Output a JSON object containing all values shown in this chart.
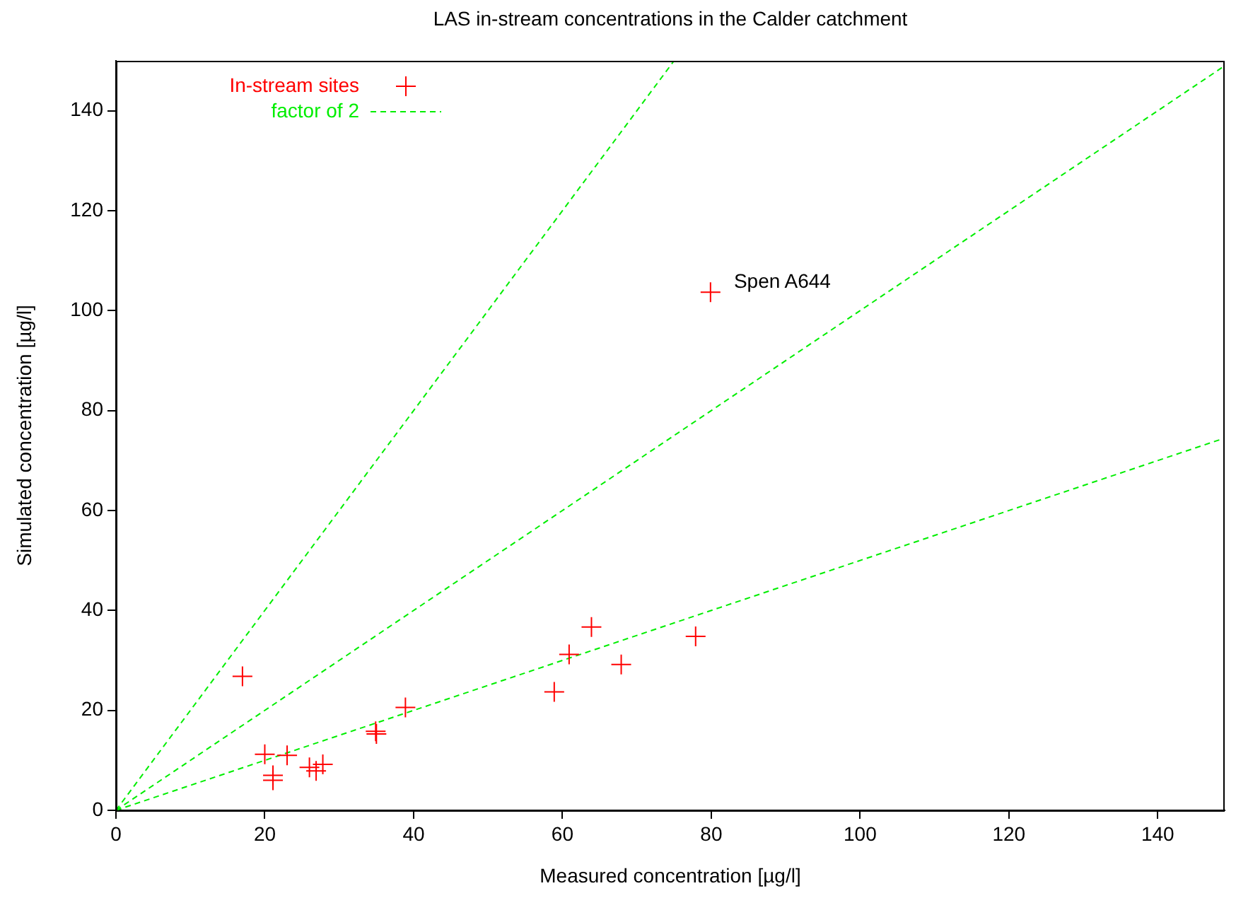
{
  "chart_data": {
    "type": "scatter",
    "title": "LAS in-stream concentrations in the Calder catchment",
    "xlabel": "Measured concentration [µg/l]",
    "ylabel": "Simulated concentration [µg/l]",
    "xlim": [
      0,
      149
    ],
    "xticks": [
      0,
      20,
      40,
      60,
      80,
      100,
      120,
      140
    ],
    "ylim": [
      0,
      150
    ],
    "yticks": [
      0,
      20,
      40,
      60,
      80,
      100,
      120,
      140
    ],
    "grid": false,
    "legend": "top left",
    "annotations": [
      {
        "text": "Spen A644",
        "x": 80,
        "y": 103.7
      }
    ],
    "series": [
      {
        "name": "In-stream sites",
        "type": "scatter",
        "color": "#ff0000",
        "marker": "cross",
        "x": [
          17,
          20,
          21.1,
          21.1,
          23,
          26,
          26.9,
          27.8,
          34.9,
          35,
          38.9,
          58.9,
          60.9,
          63.9,
          67.9,
          77.9,
          79.9
        ],
        "values": [
          26.8,
          11.2,
          7,
          6,
          11,
          8.6,
          7.9,
          9.2,
          15.8,
          15.3,
          20.6,
          23.7,
          31.2,
          36.7,
          29.2,
          34.8,
          103.7
        ]
      },
      {
        "name": "factor of 2",
        "type": "line",
        "color": "#00ee00",
        "line_style": "dashed",
        "marker": "none",
        "x": [
          0,
          75
        ],
        "values": [
          0,
          150
        ]
      },
      {
        "type": "line",
        "color": "#00ee00",
        "line_style": "dashed",
        "marker": "none",
        "x": [
          0,
          149
        ],
        "values": [
          0,
          149
        ]
      },
      {
        "type": "line",
        "color": "#00ee00",
        "line_style": "dashed",
        "marker": "none",
        "x": [
          0,
          149
        ],
        "values": [
          0,
          74.5
        ]
      }
    ]
  }
}
